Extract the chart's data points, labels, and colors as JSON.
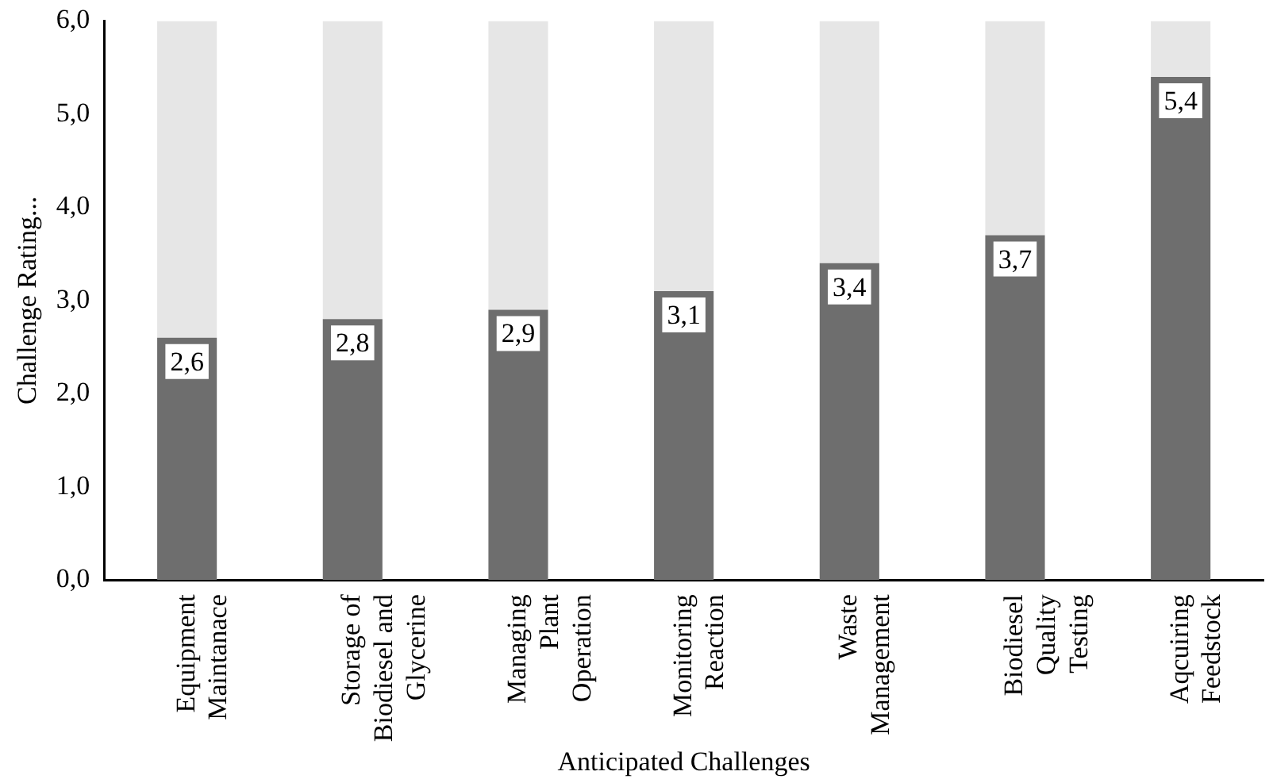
{
  "chart_data": {
    "type": "bar",
    "stacked": true,
    "xlabel": "Anticipated Challenges",
    "ylabel": "Challenge Rating...",
    "categories": [
      "Equipment Maintanace",
      "Storage of Biodiesel and Glycerine",
      "Managing Plant Operation",
      "Monitoring Reaction",
      "Waste Management",
      "Biodiesel Quality Testing",
      "Aqcuiring Feedstock"
    ],
    "series": [
      {
        "color": "#6e6e6e",
        "values": [
          2.6,
          2.8,
          2.9,
          3.1,
          3.4,
          3.7,
          5.4
        ],
        "value_labels": [
          "2,6",
          "2,8",
          "2,9",
          "3,1",
          "3,4",
          "3,7",
          "5,4"
        ]
      },
      {
        "color": "#e6e6e6",
        "values": [
          3.4,
          3.2,
          3.1,
          2.9,
          2.6,
          2.3,
          0.6
        ]
      }
    ],
    "ylim": [
      0,
      6
    ],
    "yticks": [
      {
        "value": 0,
        "label": "0,0"
      },
      {
        "value": 1,
        "label": "1,0"
      },
      {
        "value": 2,
        "label": "2,0"
      },
      {
        "value": 3,
        "label": "3,0"
      },
      {
        "value": 4,
        "label": "4,0"
      },
      {
        "value": 5,
        "label": "5,0"
      },
      {
        "value": 6,
        "label": "6,0"
      }
    ],
    "grid": false,
    "legend": false
  }
}
